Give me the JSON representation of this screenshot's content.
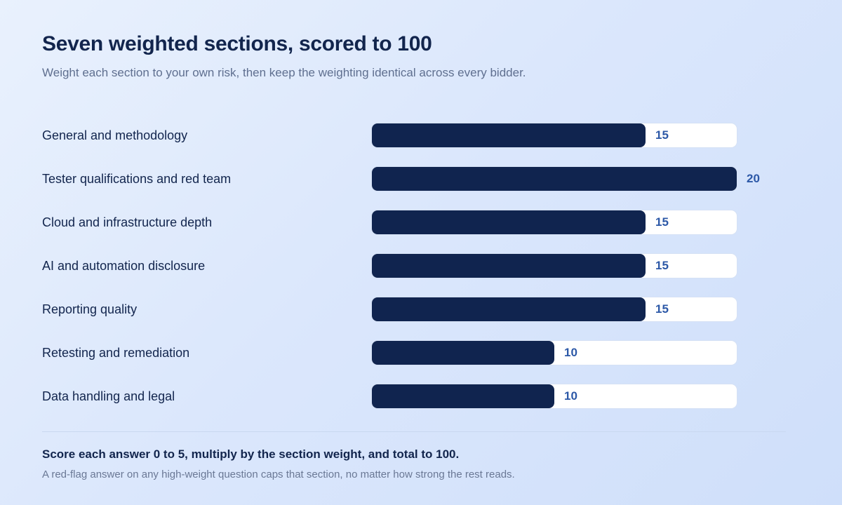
{
  "header": {
    "title": "Seven weighted sections, scored to 100",
    "subtitle": "Weight each section to your own risk, then keep the weighting identical across every bidder."
  },
  "chart_data": {
    "type": "bar",
    "orientation": "horizontal",
    "categories": [
      "General and methodology",
      "Tester qualifications and red team",
      "Cloud and infrastructure depth",
      "AI and automation disclosure",
      "Reporting quality",
      "Retesting and remediation",
      "Data handling and legal"
    ],
    "values": [
      15,
      20,
      15,
      15,
      15,
      10,
      10
    ],
    "xlim": [
      0,
      20
    ],
    "grid": false,
    "colors": {
      "bar": "#10244f",
      "track": "#ffffff",
      "value_label": "#2c58a7"
    }
  },
  "footer": {
    "main": "Score each answer 0 to 5, multiply by the section weight, and total to 100.",
    "note": "A red-flag answer on any high-weight question caps that section, no matter how strong the rest reads."
  }
}
